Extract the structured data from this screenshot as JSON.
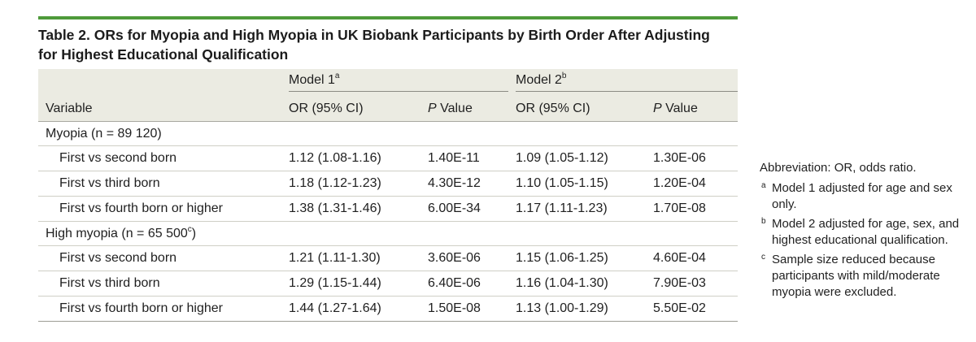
{
  "title": "Table 2. ORs for Myopia and High Myopia in UK Biobank Participants by Birth Order After Adjusting for Highest Educational Qualification",
  "title_line1": "Table 2. ORs for Myopia and High Myopia in UK Biobank Participants by Birth Order After Adjusting",
  "title_line2": "for Highest Educational Qualification",
  "accent_color": "#4e9a3a",
  "header": {
    "model1": "Model 1",
    "model1_mark": "a",
    "model2": "Model 2",
    "model2_mark": "b",
    "variable": "Variable",
    "or_ci": "OR (95% CI)",
    "p_italic": "P",
    "p_rest": " Value"
  },
  "sections": [
    {
      "label": "Myopia (n = 89 120)",
      "label_mark": "",
      "label_close": "",
      "rows": [
        {
          "variable": "First vs second born",
          "m1_or": "1.12 (1.08-1.16)",
          "m1_p": "1.40E-11",
          "m2_or": "1.09 (1.05-1.12)",
          "m2_p": "1.30E-06"
        },
        {
          "variable": "First vs third born",
          "m1_or": "1.18 (1.12-1.23)",
          "m1_p": "4.30E-12",
          "m2_or": "1.10 (1.05-1.15)",
          "m2_p": "1.20E-04"
        },
        {
          "variable": "First vs fourth born or higher",
          "m1_or": "1.38 (1.31-1.46)",
          "m1_p": "6.00E-34",
          "m2_or": "1.17 (1.11-1.23)",
          "m2_p": "1.70E-08"
        }
      ]
    },
    {
      "label": "High myopia (n = 65 500",
      "label_mark": "c",
      "label_close": ")",
      "rows": [
        {
          "variable": "First vs second born",
          "m1_or": "1.21 (1.11-1.30)",
          "m1_p": "3.60E-06",
          "m2_or": "1.15 (1.06-1.25)",
          "m2_p": "4.60E-04"
        },
        {
          "variable": "First vs third born",
          "m1_or": "1.29 (1.15-1.44)",
          "m1_p": "6.40E-06",
          "m2_or": "1.16 (1.04-1.30)",
          "m2_p": "7.90E-03"
        },
        {
          "variable": "First vs fourth born or higher",
          "m1_or": "1.44 (1.27-1.64)",
          "m1_p": "1.50E-08",
          "m2_or": "1.13 (1.00-1.29)",
          "m2_p": "5.50E-02"
        }
      ]
    }
  ],
  "notes": {
    "abbreviation": "Abbreviation: OR, odds ratio.",
    "footnotes": [
      {
        "mark": "a",
        "text": "Model 1 adjusted for age and sex only."
      },
      {
        "mark": "b",
        "text": "Model 2 adjusted for age, sex, and highest educational qualification."
      },
      {
        "mark": "c",
        "text": "Sample size reduced because participants with mild/moderate myopia were excluded."
      }
    ]
  }
}
